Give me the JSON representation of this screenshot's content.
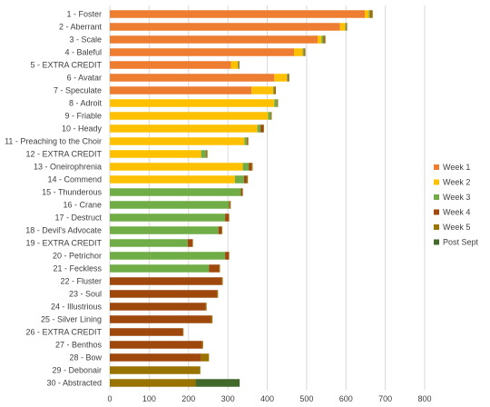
{
  "chart_data": {
    "type": "bar",
    "orientation": "horizontal",
    "stacked": true,
    "categories": [
      "1 - Foster",
      "2 - Aberrant",
      "3 - Scale",
      "4 - Baleful",
      "5 - EXTRA CREDIT",
      "6 - Avatar",
      "7 - Speculate",
      "8 - Adroit",
      "9 - Friable",
      "10 - Heady",
      "11 - Preaching to the Choir",
      "12 - EXTRA CREDIT",
      "13 - Oneirophrenia",
      "14 - Commend",
      "15 - Thunderous",
      "16 - Crane",
      "17 - Destruct",
      "18 - Devil's Advocate",
      "19 - EXTRA CREDIT",
      "20 - Petrichor",
      "21 - Feckless",
      "22 - Fluster",
      "23 - Soul",
      "24 - Illustrious",
      "25 - Silver Lining",
      "26 - EXTRA CREDIT",
      "27 - Benthos",
      "28 - Bow",
      "29 - Debonair",
      "30 - Abstracted"
    ],
    "series": [
      {
        "name": "Week 1",
        "color": "#ED7D31",
        "values": [
          648,
          585,
          528,
          468,
          308,
          418,
          360,
          0,
          0,
          0,
          0,
          0,
          0,
          0,
          0,
          0,
          0,
          0,
          0,
          0,
          0,
          0,
          0,
          0,
          0,
          0,
          0,
          0,
          0,
          0
        ]
      },
      {
        "name": "Week 2",
        "color": "#FFC000",
        "values": [
          10,
          13,
          10,
          22,
          17,
          32,
          55,
          418,
          402,
          375,
          342,
          232,
          338,
          318,
          0,
          0,
          0,
          0,
          0,
          0,
          0,
          0,
          0,
          0,
          0,
          0,
          0,
          0,
          0,
          0
        ]
      },
      {
        "name": "Week 3",
        "color": "#70AD47",
        "values": [
          3,
          2,
          5,
          3,
          2,
          2,
          2,
          7,
          7,
          8,
          6,
          13,
          15,
          23,
          333,
          303,
          293,
          276,
          198,
          293,
          252,
          0,
          0,
          0,
          0,
          0,
          0,
          0,
          0,
          0
        ]
      },
      {
        "name": "Week 4",
        "color": "#9E480E",
        "values": [
          2,
          1,
          2,
          2,
          1,
          2,
          2,
          1,
          1,
          7,
          2,
          2,
          7,
          7,
          4,
          3,
          9,
          8,
          12,
          9,
          26,
          285,
          272,
          244,
          258,
          186,
          234,
          232,
          0,
          0
        ]
      },
      {
        "name": "Week 5",
        "color": "#997300",
        "values": [
          5,
          2,
          3,
          2,
          1,
          2,
          3,
          1,
          1,
          2,
          2,
          1,
          3,
          3,
          1,
          1,
          1,
          2,
          1,
          1,
          2,
          2,
          3,
          2,
          3,
          1,
          3,
          20,
          230,
          218
        ]
      },
      {
        "name": "Post Sept",
        "color": "#43682B",
        "values": [
          0,
          0,
          0,
          0,
          0,
          0,
          0,
          0,
          0,
          0,
          0,
          0,
          0,
          0,
          0,
          0,
          0,
          0,
          0,
          0,
          0,
          0,
          0,
          0,
          0,
          0,
          0,
          0,
          0,
          112
        ]
      }
    ],
    "xlim": [
      0,
      800
    ],
    "xticks": [
      0,
      100,
      200,
      300,
      400,
      500,
      600,
      700,
      800
    ],
    "grid": true,
    "legend_position": "right",
    "title": "",
    "xlabel": "",
    "ylabel": ""
  }
}
